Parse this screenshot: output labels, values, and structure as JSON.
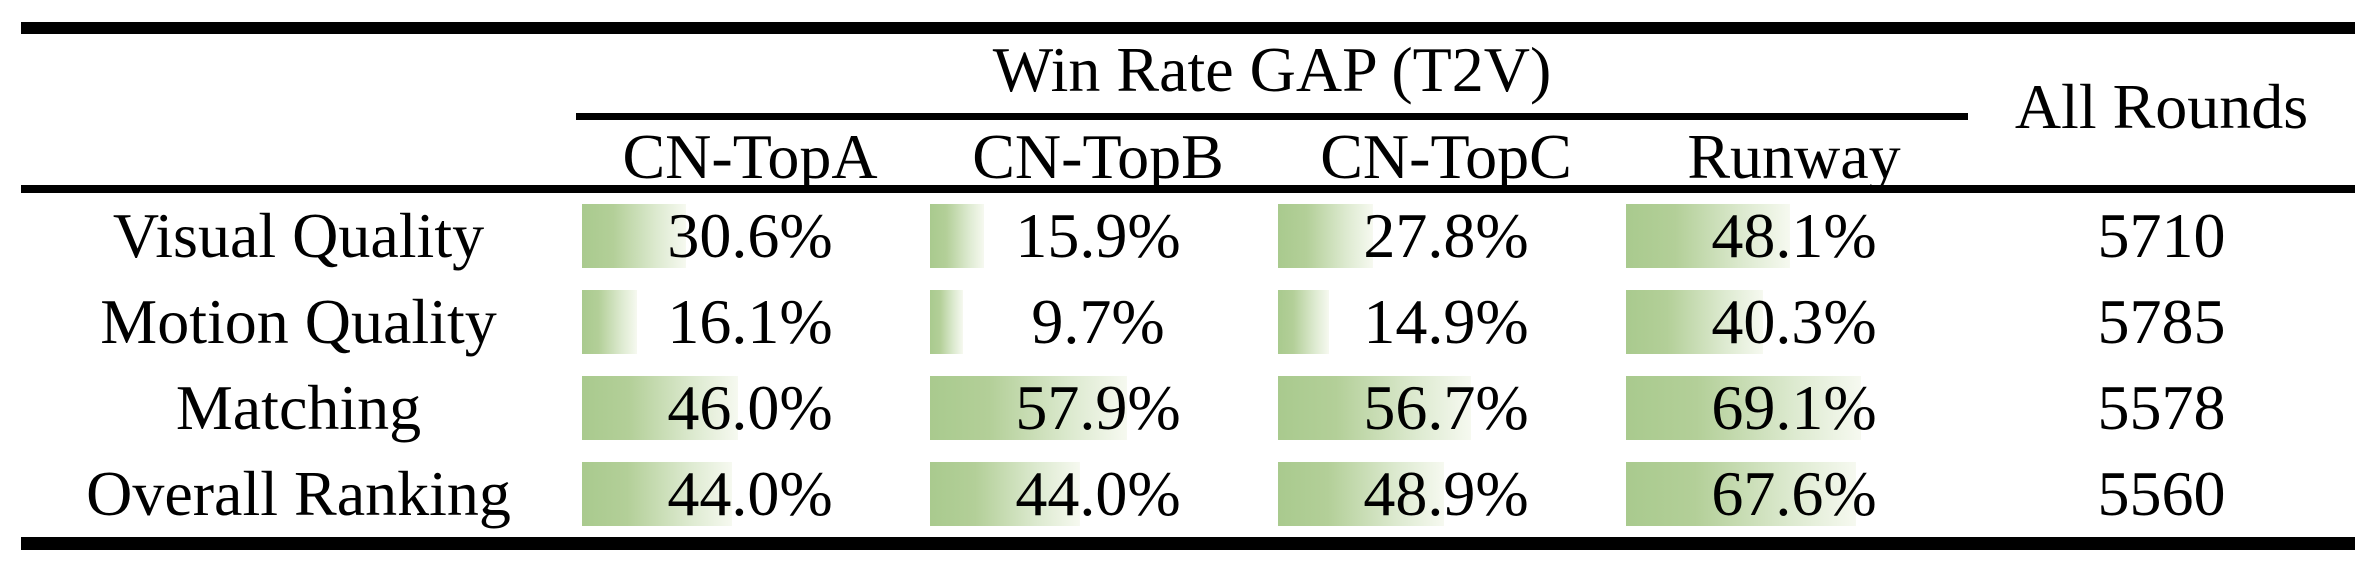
{
  "chart_data": {
    "type": "table",
    "title": "Win Rate GAP (T2V)",
    "group_header": "Win Rate GAP (T2V)",
    "columns": [
      "CN-TopA",
      "CN-TopB",
      "CN-TopC",
      "Runway"
    ],
    "extra_column": "All Rounds",
    "rows": [
      {
        "label": "Visual Quality",
        "win_rate_gap_pct": [
          30.6,
          15.9,
          27.8,
          48.1
        ],
        "all_rounds": 5710
      },
      {
        "label": "Motion Quality",
        "win_rate_gap_pct": [
          16.1,
          9.7,
          14.9,
          40.3
        ],
        "all_rounds": 5785
      },
      {
        "label": "Matching",
        "win_rate_gap_pct": [
          46.0,
          57.9,
          56.7,
          69.1
        ],
        "all_rounds": 5578
      },
      {
        "label": "Overall Ranking",
        "win_rate_gap_pct": [
          44.0,
          44.0,
          48.9,
          67.6
        ],
        "all_rounds": 5560
      }
    ],
    "layout": {
      "bar_fill_start": "#a9ca8e",
      "bar_fill_end": "#f6f9f0",
      "bar_direction": "left-to-right",
      "bar_scale": "width equals percent of column width",
      "value_format": "one decimal with % suffix",
      "rule_color": "#000000",
      "text_color": "#000000",
      "background": "#ffffff"
    }
  }
}
